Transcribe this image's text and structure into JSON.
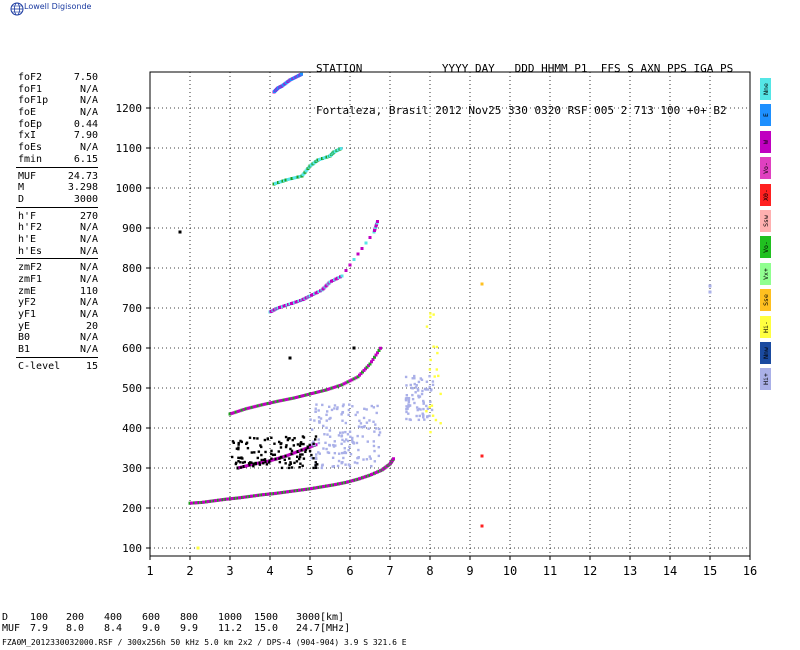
{
  "logo_text": "Lowell Digisonde",
  "header": {
    "labels": "STATION            YYYY DAY   DDD HHMM P1  FFS S AXN PPS IGA PS",
    "values": "Fortaleza, Brasil 2012 Nov25 330 0320 RSF 005 2 713 100 +0+ B2"
  },
  "params": [
    {
      "name": "foF2",
      "value": "7.50"
    },
    {
      "name": "foF1",
      "value": "N/A"
    },
    {
      "name": "foF1p",
      "value": "N/A"
    },
    {
      "name": "foE",
      "value": "N/A"
    },
    {
      "name": "foEp",
      "value": "0.44"
    },
    {
      "name": "fxI",
      "value": "7.90"
    },
    {
      "name": "foEs",
      "value": "N/A"
    },
    {
      "name": "fmin",
      "value": "6.15"
    },
    {
      "sep": true
    },
    {
      "name": "MUF",
      "value": "24.73"
    },
    {
      "name": "M",
      "value": "3.298"
    },
    {
      "name": "D",
      "value": "3000"
    },
    {
      "sep": true
    },
    {
      "name": "h'F",
      "value": "270"
    },
    {
      "name": "h'F2",
      "value": "N/A"
    },
    {
      "name": "h'E",
      "value": "N/A"
    },
    {
      "name": "h'Es",
      "value": "N/A"
    },
    {
      "sep": true
    },
    {
      "name": "zmF2",
      "value": "N/A"
    },
    {
      "name": "zmF1",
      "value": "N/A"
    },
    {
      "name": "zmE",
      "value": "110"
    },
    {
      "name": "yF2",
      "value": "N/A"
    },
    {
      "name": "yF1",
      "value": "N/A"
    },
    {
      "name": "yE",
      "value": "20"
    },
    {
      "name": "B0",
      "value": "N/A"
    },
    {
      "name": "B1",
      "value": "N/A"
    },
    {
      "sep": true
    },
    {
      "name": "C-level",
      "value": "15"
    }
  ],
  "legend": [
    {
      "label": "Nne",
      "color": "#55e6e6"
    },
    {
      "label": "E",
      "color": "#1e90ff"
    },
    {
      "label": "W",
      "color": "#c000c0"
    },
    {
      "label": "Vo-",
      "color": "#e040c0"
    },
    {
      "label": "X0-",
      "color": "#ff2020"
    },
    {
      "label": "Ssw",
      "color": "#ffb0b0"
    },
    {
      "label": "Vo-",
      "color": "#20c020"
    },
    {
      "label": "Vx+",
      "color": "#90ff90"
    },
    {
      "label": "Sse",
      "color": "#ffc020"
    },
    {
      "label": "Hi-",
      "color": "#ffff40"
    },
    {
      "label": "Nnw",
      "color": "#1a4aa0"
    },
    {
      "label": "Hi+",
      "color": "#aab0e8"
    }
  ],
  "muf_table": {
    "d_label": "D",
    "d_values": [
      "100",
      "200",
      "400",
      "600",
      "800",
      "1000",
      "1500",
      "3000"
    ],
    "d_unit": "[km]",
    "muf_label": "MUF",
    "muf_values": [
      "7.9",
      "8.0",
      "8.4",
      "9.0",
      "9.9",
      "11.2",
      "15.0",
      "24.7"
    ],
    "muf_unit": "[MHz]"
  },
  "footer": "FZA0M_2012330032000.RSF / 300x256h 50 kHz 5.0 km 2x2 / DPS-4 (904-904)  3.9 S 321.6 E",
  "chart_data": {
    "type": "scatter",
    "xlim": [
      1,
      16
    ],
    "ylim": [
      80,
      1290
    ],
    "xticks": [
      1,
      2,
      3,
      4,
      5,
      6,
      7,
      8,
      9,
      10,
      11,
      12,
      13,
      14,
      15,
      16
    ],
    "yticks": [
      100,
      200,
      300,
      400,
      500,
      600,
      700,
      800,
      900,
      1000,
      1100,
      1200
    ],
    "grid": true,
    "traces": [
      {
        "name": "F trace",
        "color": "#c000c0",
        "alt": "#20a020",
        "x": [
          2.0,
          2.3,
          2.6,
          2.9,
          3.2,
          3.5,
          3.8,
          4.1,
          4.4,
          4.7,
          5.0,
          5.3,
          5.6,
          5.9,
          6.2,
          6.5,
          6.8,
          7.0,
          7.1
        ],
        "y": [
          212,
          214,
          218,
          222,
          225,
          229,
          233,
          236,
          240,
          244,
          248,
          253,
          258,
          264,
          272,
          282,
          295,
          310,
          325
        ]
      },
      {
        "name": "2F trace",
        "color": "#c000c0",
        "alt": "#20a020",
        "x": [
          3.0,
          3.4,
          3.8,
          4.2,
          4.6,
          5.0,
          5.4,
          5.8,
          6.2,
          6.5,
          6.8
        ],
        "y": [
          435,
          448,
          458,
          467,
          475,
          485,
          495,
          508,
          528,
          560,
          605
        ]
      },
      {
        "name": "3F trace",
        "color": "#c000c0",
        "alt": "#000000",
        "x": [
          3.2,
          3.6,
          4.0,
          4.4,
          4.8,
          5.2
        ],
        "y": [
          300,
          310,
          318,
          330,
          345,
          360
        ]
      },
      {
        "name": "high echoes 1",
        "color": "#c000c0",
        "alt": "#55e6e6",
        "x": [
          4.0,
          4.2,
          4.5,
          4.8,
          5.0,
          5.3,
          5.5,
          5.8,
          6.6,
          6.7
        ],
        "y": [
          690,
          700,
          710,
          720,
          730,
          745,
          765,
          780,
          890,
          920
        ]
      },
      {
        "name": "high echoes 2",
        "color": "#55e6e6",
        "alt": "#20a020",
        "x": [
          4.1,
          4.4,
          4.8,
          5.0,
          5.2,
          5.5,
          5.6,
          5.8
        ],
        "y": [
          1010,
          1020,
          1030,
          1055,
          1070,
          1080,
          1090,
          1100
        ]
      },
      {
        "name": "top echoes",
        "color": "#1e90ff",
        "alt": "#c000c0",
        "x": [
          4.1,
          4.2,
          4.3,
          4.5,
          4.7,
          4.8
        ],
        "y": [
          1240,
          1250,
          1255,
          1270,
          1280,
          1285
        ]
      }
    ],
    "clouds": [
      {
        "name": "spread F cluster",
        "color": "#aab0e8",
        "x_range": [
          5.0,
          6.8
        ],
        "y_range": [
          300,
          460
        ],
        "count": 160
      },
      {
        "name": "spread 7.5-8 MHz",
        "color": "#aab0e8",
        "x_range": [
          7.4,
          8.1
        ],
        "y_range": [
          420,
          530
        ],
        "count": 80
      },
      {
        "name": "black cluster",
        "color": "#000000",
        "x_range": [
          3.0,
          5.2
        ],
        "y_range": [
          300,
          380
        ],
        "count": 120
      },
      {
        "name": "yellow column",
        "color": "#ffff40",
        "x_range": [
          7.9,
          8.3
        ],
        "y_range": [
          375,
          690
        ],
        "count": 20
      }
    ],
    "isolated": [
      {
        "x": 1.75,
        "y": 890,
        "color": "#000000"
      },
      {
        "x": 2.2,
        "y": 100,
        "color": "#ffff40"
      },
      {
        "x": 4.5,
        "y": 575,
        "color": "#000000"
      },
      {
        "x": 6.1,
        "y": 600,
        "color": "#000000"
      },
      {
        "x": 15.0,
        "y": 740,
        "color": "#aab0e8"
      },
      {
        "x": 15.0,
        "y": 755,
        "color": "#aab0e8"
      },
      {
        "x": 9.3,
        "y": 155,
        "color": "#ff2020"
      },
      {
        "x": 9.3,
        "y": 330,
        "color": "#ff2020"
      },
      {
        "x": 9.3,
        "y": 760,
        "color": "#ffc020"
      }
    ]
  }
}
